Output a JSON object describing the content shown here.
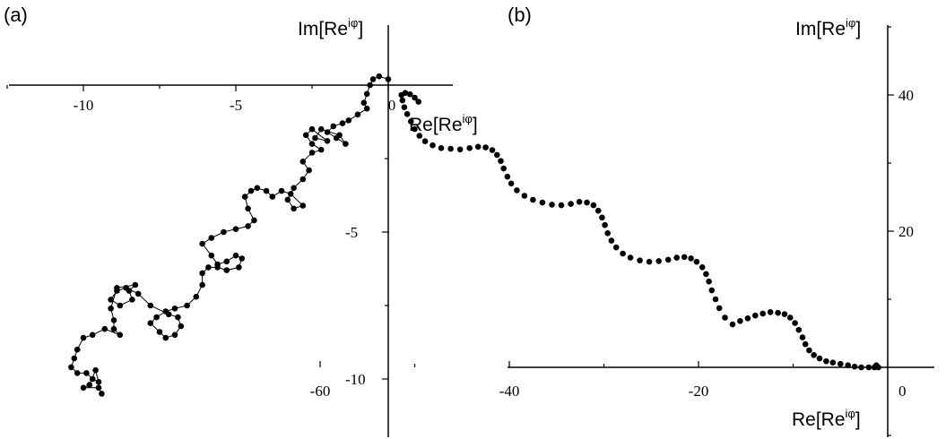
{
  "chart_data": [
    {
      "type": "scatter",
      "panel_label": "(a)",
      "xlabel": {
        "base": "Re[Re",
        "sup": "iφ",
        "close": "]"
      },
      "ylabel": {
        "base": "Im[Re",
        "sup": "iφ",
        "close": "]"
      },
      "x_ticks": [
        {
          "value": -10,
          "label": "-10"
        },
        {
          "value": -5,
          "label": "-5"
        },
        {
          "value": 0,
          "label": "0"
        }
      ],
      "y_ticks": [
        {
          "value": -5,
          "label": "-5"
        },
        {
          "value": -10,
          "label": "-10"
        }
      ],
      "xlim": [
        -13,
        2.2
      ],
      "ylim": [
        -12,
        2
      ],
      "connected": true,
      "marker_color": "#000000",
      "points": [
        [
          0.0,
          0.2
        ],
        [
          -0.3,
          0.3
        ],
        [
          -0.5,
          0.2
        ],
        [
          -0.6,
          0.0
        ],
        [
          -0.7,
          -0.3
        ],
        [
          -0.8,
          -0.6
        ],
        [
          -0.7,
          -0.8
        ],
        [
          -1.0,
          -1.0
        ],
        [
          -1.3,
          -1.2
        ],
        [
          -1.5,
          -1.3
        ],
        [
          -1.8,
          -1.4
        ],
        [
          -2.0,
          -1.6
        ],
        [
          -1.7,
          -1.8
        ],
        [
          -1.4,
          -2.0
        ],
        [
          -1.6,
          -1.7
        ],
        [
          -2.2,
          -1.5
        ],
        [
          -2.4,
          -1.8
        ],
        [
          -2.0,
          -1.9
        ],
        [
          -2.5,
          -1.5
        ],
        [
          -2.7,
          -1.7
        ],
        [
          -2.5,
          -2.0
        ],
        [
          -2.2,
          -2.2
        ],
        [
          -2.5,
          -2.3
        ],
        [
          -2.8,
          -2.6
        ],
        [
          -2.6,
          -2.9
        ],
        [
          -2.8,
          -3.2
        ],
        [
          -3.1,
          -3.5
        ],
        [
          -3.3,
          -3.9
        ],
        [
          -3.1,
          -4.2
        ],
        [
          -2.8,
          -4.1
        ],
        [
          -3.2,
          -3.7
        ],
        [
          -3.5,
          -3.6
        ],
        [
          -3.8,
          -3.8
        ],
        [
          -4.0,
          -3.6
        ],
        [
          -4.3,
          -3.5
        ],
        [
          -4.5,
          -3.6
        ],
        [
          -4.7,
          -3.8
        ],
        [
          -4.6,
          -4.2
        ],
        [
          -4.4,
          -4.6
        ],
        [
          -4.6,
          -4.8
        ],
        [
          -5.0,
          -4.9
        ],
        [
          -5.4,
          -5.0
        ],
        [
          -5.8,
          -5.2
        ],
        [
          -6.1,
          -5.4
        ],
        [
          -5.8,
          -5.8
        ],
        [
          -5.6,
          -6.1
        ],
        [
          -5.3,
          -6.0
        ],
        [
          -5.0,
          -5.8
        ],
        [
          -4.8,
          -5.9
        ],
        [
          -4.9,
          -6.2
        ],
        [
          -5.3,
          -6.3
        ],
        [
          -5.6,
          -6.2
        ],
        [
          -5.9,
          -6.2
        ],
        [
          -6.1,
          -6.4
        ],
        [
          -6.1,
          -6.8
        ],
        [
          -6.3,
          -7.2
        ],
        [
          -6.6,
          -7.5
        ],
        [
          -7.0,
          -7.6
        ],
        [
          -7.3,
          -7.7
        ],
        [
          -7.6,
          -7.9
        ],
        [
          -7.8,
          -8.1
        ],
        [
          -7.5,
          -8.4
        ],
        [
          -7.3,
          -8.6
        ],
        [
          -7.0,
          -8.5
        ],
        [
          -6.8,
          -8.2
        ],
        [
          -6.9,
          -7.9
        ],
        [
          -7.2,
          -7.8
        ],
        [
          -7.8,
          -7.5
        ],
        [
          -8.2,
          -7.1
        ],
        [
          -8.6,
          -6.9
        ],
        [
          -8.9,
          -7.0
        ],
        [
          -9.1,
          -7.3
        ],
        [
          -8.8,
          -7.5
        ],
        [
          -8.4,
          -7.3
        ],
        [
          -8.5,
          -7.0
        ],
        [
          -8.3,
          -6.8
        ],
        [
          -8.9,
          -6.9
        ],
        [
          -9.1,
          -7.6
        ],
        [
          -9.0,
          -8.0
        ],
        [
          -9.0,
          -8.3
        ],
        [
          -8.8,
          -8.5
        ],
        [
          -9.3,
          -8.3
        ],
        [
          -9.7,
          -8.5
        ],
        [
          -10.0,
          -8.6
        ],
        [
          -10.2,
          -9.0
        ],
        [
          -10.3,
          -9.3
        ],
        [
          -10.4,
          -9.6
        ],
        [
          -10.2,
          -9.8
        ],
        [
          -9.9,
          -9.8
        ],
        [
          -9.7,
          -10.0
        ],
        [
          -9.5,
          -10.1
        ],
        [
          -9.6,
          -9.7
        ],
        [
          -9.8,
          -10.2
        ],
        [
          -10.0,
          -10.3
        ],
        [
          -9.5,
          -10.3
        ],
        [
          -9.4,
          -10.5
        ]
      ]
    },
    {
      "type": "scatter",
      "panel_label": "(b)",
      "xlabel": {
        "base": "Re[Re",
        "sup": "iφ",
        "close": "]"
      },
      "ylabel": {
        "base": "Im[Re",
        "sup": "iφ",
        "close": "]"
      },
      "x_ticks": [
        {
          "value": -60,
          "label": "-60"
        },
        {
          "value": -40,
          "label": "-40"
        },
        {
          "value": -20,
          "label": "-20"
        },
        {
          "value": 0,
          "label": "0"
        }
      ],
      "y_ticks": [
        {
          "value": 40,
          "label": "40"
        },
        {
          "value": 20,
          "label": "20"
        }
      ],
      "xlim": [
        -63,
        10
      ],
      "ylim": [
        -10,
        50
      ],
      "connected": false,
      "marker_color": "#000000",
      "points": [
        [
          -1.0,
          0.0
        ],
        [
          -1.2,
          0.3
        ],
        [
          -1.4,
          0.0
        ],
        [
          -2.0,
          0.0
        ],
        [
          -2.8,
          0.0
        ],
        [
          -3.5,
          0.1
        ],
        [
          -4.2,
          0.3
        ],
        [
          -5.0,
          0.5
        ],
        [
          -5.8,
          0.7
        ],
        [
          -6.5,
          0.9
        ],
        [
          -7.2,
          1.3
        ],
        [
          -7.8,
          1.8
        ],
        [
          -8.3,
          2.5
        ],
        [
          -8.7,
          3.4
        ],
        [
          -9.0,
          4.4
        ],
        [
          -9.4,
          5.5
        ],
        [
          -9.8,
          6.5
        ],
        [
          -10.3,
          7.3
        ],
        [
          -10.9,
          7.8
        ],
        [
          -11.6,
          8.0
        ],
        [
          -12.4,
          8.1
        ],
        [
          -13.2,
          7.9
        ],
        [
          -14.0,
          7.6
        ],
        [
          -14.8,
          7.2
        ],
        [
          -15.6,
          6.8
        ],
        [
          -16.4,
          6.3
        ],
        [
          -17.2,
          7.3
        ],
        [
          -17.8,
          8.7
        ],
        [
          -18.2,
          10.0
        ],
        [
          -18.6,
          11.3
        ],
        [
          -18.9,
          12.6
        ],
        [
          -19.2,
          13.7
        ],
        [
          -19.6,
          14.7
        ],
        [
          -20.2,
          15.5
        ],
        [
          -20.8,
          16.0
        ],
        [
          -21.5,
          16.2
        ],
        [
          -22.3,
          16.1
        ],
        [
          -23.2,
          15.8
        ],
        [
          -24.2,
          15.6
        ],
        [
          -25.2,
          15.5
        ],
        [
          -26.2,
          15.7
        ],
        [
          -27.2,
          16.1
        ],
        [
          -28.0,
          16.7
        ],
        [
          -28.7,
          17.6
        ],
        [
          -29.2,
          18.6
        ],
        [
          -29.6,
          19.7
        ],
        [
          -29.9,
          20.9
        ],
        [
          -30.2,
          22.0
        ],
        [
          -30.6,
          23.0
        ],
        [
          -31.1,
          23.8
        ],
        [
          -31.8,
          24.2
        ],
        [
          -32.6,
          24.3
        ],
        [
          -33.5,
          24.0
        ],
        [
          -34.5,
          23.8
        ],
        [
          -35.5,
          23.9
        ],
        [
          -36.5,
          24.2
        ],
        [
          -37.5,
          24.6
        ],
        [
          -38.4,
          25.2
        ],
        [
          -39.2,
          26.0
        ],
        [
          -39.8,
          27.0
        ],
        [
          -40.2,
          28.0
        ],
        [
          -40.6,
          29.2
        ],
        [
          -40.9,
          30.3
        ],
        [
          -41.3,
          31.2
        ],
        [
          -41.8,
          31.9
        ],
        [
          -42.5,
          32.3
        ],
        [
          -43.3,
          32.4
        ],
        [
          -44.2,
          32.2
        ],
        [
          -45.2,
          32.0
        ],
        [
          -46.2,
          32.1
        ],
        [
          -47.2,
          32.2
        ],
        [
          -48.1,
          32.6
        ],
        [
          -48.9,
          33.2
        ],
        [
          -49.5,
          34.0
        ],
        [
          -50.0,
          35.0
        ],
        [
          -50.4,
          36.1
        ],
        [
          -50.8,
          37.2
        ],
        [
          -51.1,
          38.2
        ],
        [
          -51.3,
          39.2
        ],
        [
          -51.4,
          40.0
        ],
        [
          -51.0,
          40.3
        ],
        [
          -50.5,
          40.1
        ],
        [
          -50.0,
          39.6
        ],
        [
          -49.6,
          39.0
        ]
      ]
    }
  ]
}
